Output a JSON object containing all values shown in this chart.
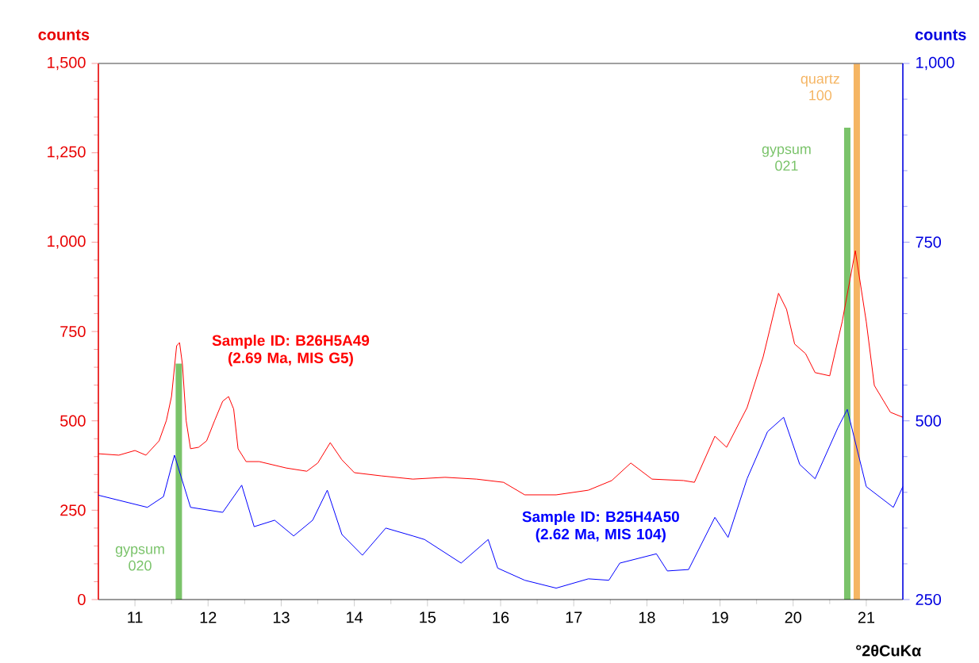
{
  "chart_data": {
    "type": "line",
    "xlabel": "°2θCuKα",
    "ylabel": "counts",
    "y2label": "counts",
    "xlim": [
      10.5,
      21.5
    ],
    "xticks": [
      11,
      12,
      13,
      14,
      15,
      16,
      17,
      18,
      19,
      20,
      21
    ],
    "ylim": [
      0,
      1500
    ],
    "yticks": [
      0,
      250,
      500,
      750,
      {
        "value": 1000,
        "label": "1,000"
      },
      {
        "value": 1250,
        "label": "1,250"
      },
      {
        "value": 1500,
        "label": "1,500"
      }
    ],
    "y2lim": [
      250,
      1000
    ],
    "y2ticks": [
      250,
      500,
      750,
      {
        "value": 1000,
        "label": "1,000"
      }
    ],
    "series": [
      {
        "name": "Sample ID: B26H5A49 (2.69 Ma, MIS G5)",
        "color": "#ff0000",
        "x": [
          10.5,
          10.78,
          11.0,
          11.15,
          11.33,
          11.43,
          11.5,
          11.57,
          11.61,
          11.65,
          11.7,
          11.76,
          11.87,
          11.98,
          12.09,
          12.2,
          12.28,
          12.35,
          12.41,
          12.52,
          12.7,
          13.07,
          13.35,
          13.5,
          13.67,
          13.83,
          14.0,
          14.37,
          14.8,
          15.24,
          15.67,
          16.04,
          16.33,
          16.76,
          17.2,
          17.52,
          17.78,
          18.07,
          18.5,
          18.65,
          18.93,
          19.09,
          19.37,
          19.59,
          19.8,
          19.91,
          20.02,
          20.17,
          20.3,
          20.5,
          20.67,
          20.85,
          21.0,
          21.11,
          21.33,
          21.5
        ],
        "values": [
          408,
          404,
          417,
          404,
          444,
          501,
          568,
          710,
          719,
          657,
          501,
          422,
          426,
          444,
          501,
          555,
          568,
          533,
          422,
          386,
          386,
          368,
          359,
          382,
          439,
          391,
          355,
          346,
          337,
          342,
          337,
          328,
          293,
          293,
          306,
          333,
          382,
          337,
          333,
          328,
          457,
          426,
          537,
          679,
          857,
          812,
          715,
          688,
          635,
          626,
          777,
          976,
          777,
          599,
          524,
          510
        ]
      },
      {
        "name": "Sample ID: B25H4A50 (2.62 Ma, MIS 104)",
        "color": "#0000ff",
        "axis": "y2",
        "x": [
          10.5,
          11.17,
          11.39,
          11.54,
          11.76,
          12.2,
          12.46,
          12.63,
          12.91,
          13.17,
          13.43,
          13.63,
          13.83,
          14.11,
          14.43,
          14.8,
          14.96,
          15.46,
          15.83,
          15.96,
          16.33,
          16.76,
          17.2,
          17.48,
          17.63,
          18.13,
          18.28,
          18.57,
          18.93,
          19.11,
          19.37,
          19.65,
          19.87,
          20.09,
          20.3,
          20.61,
          20.74,
          21.0,
          21.37,
          21.5
        ],
        "values": [
          396,
          379,
          394,
          452,
          379,
          372,
          410,
          352,
          361,
          339,
          361,
          403,
          341,
          312,
          350,
          339,
          334,
          301,
          334,
          294,
          277,
          266,
          279,
          277,
          301,
          314,
          290,
          292,
          365,
          337,
          419,
          485,
          505,
          439,
          419,
          490,
          516,
          408,
          379,
          408
        ]
      },
      {
        "name": "gypsum 020",
        "type": "bar",
        "color": "#7ac36a",
        "x": [
          11.6
        ],
        "values": [
          660
        ]
      },
      {
        "name": "gypsum 021",
        "type": "bar",
        "color": "#7ac36a",
        "x": [
          20.74
        ],
        "values": [
          1320
        ]
      },
      {
        "name": "quartz 100",
        "type": "bar",
        "color": "#f5b563",
        "x": [
          20.87
        ],
        "values": [
          1500
        ]
      }
    ]
  }
}
